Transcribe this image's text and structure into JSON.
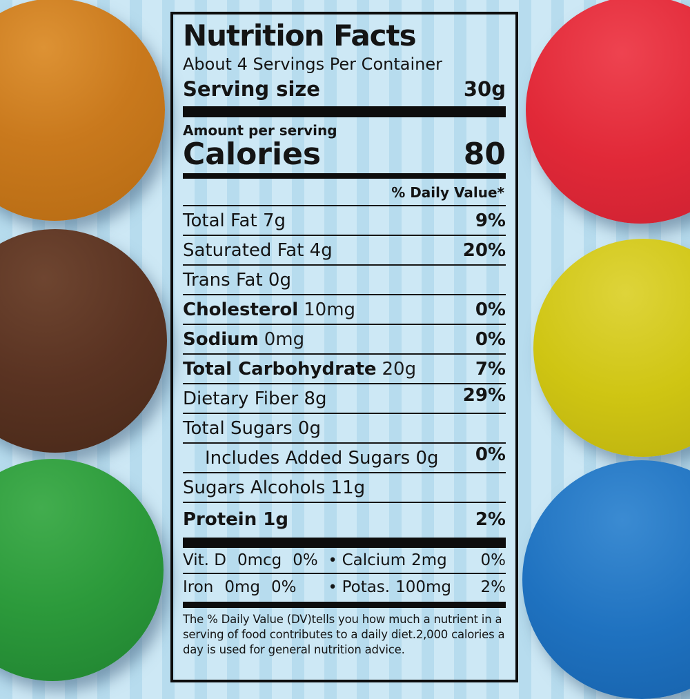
{
  "background": {
    "base": "#cde8f5",
    "stripe": "#b7dcee"
  },
  "candies": [
    {
      "name": "orange-candy",
      "color": "#c9791d"
    },
    {
      "name": "brown-candy",
      "color": "#5a3322"
    },
    {
      "name": "green-candy",
      "color": "#2c9a3b"
    },
    {
      "name": "red-candy",
      "color": "#e12938"
    },
    {
      "name": "yellow-candy",
      "color": "#cfc513"
    },
    {
      "name": "blue-candy",
      "color": "#1f72c0"
    }
  ],
  "label": {
    "title": "Nutrition Facts",
    "servings_per_container": "About 4 Servings Per Container",
    "serving_size_label": "Serving size",
    "serving_size_value": "30g",
    "amount_per_serving": "Amount per serving",
    "calories_label": "Calories",
    "calories_value": "80",
    "daily_value_header": "% Daily Value*",
    "rows": [
      {
        "name": "Total Fat 7g",
        "amount": "",
        "dv": "9%"
      },
      {
        "name": "Saturated Fat 4g",
        "amount": "",
        "dv": "20%"
      },
      {
        "name": "Trans Fat 0g",
        "amount": "",
        "dv": ""
      },
      {
        "name": "Cholesterol",
        "amount": "10mg",
        "dv": "0%"
      },
      {
        "name": "Sodium",
        "amount": "0mg",
        "dv": "0%"
      },
      {
        "name": "Total Carbohydrate",
        "amount": "20g",
        "dv": "7%"
      },
      {
        "name": "Dietary Fiber 8g",
        "amount": "",
        "dv": "29%"
      },
      {
        "name": "Total Sugars 0g",
        "amount": "",
        "dv": ""
      },
      {
        "name": "Includes Added Sugars 0g",
        "amount": "",
        "dv": "0%"
      },
      {
        "name": "Sugars Alcohols 11g",
        "amount": "",
        "dv": ""
      },
      {
        "name": "Protein 1g",
        "amount": "",
        "dv": "2%"
      }
    ],
    "bullet": "•",
    "micronutrients": [
      {
        "name": "Vit. D",
        "amount": "0mcg",
        "dv": "0%"
      },
      {
        "name": "Calcium",
        "amount": "2mg",
        "dv": "0%"
      },
      {
        "name": "Iron",
        "amount": "0mg",
        "dv": "0%"
      },
      {
        "name": "Potas.",
        "amount": "100mg",
        "dv": "2%"
      }
    ],
    "footnote": "The % Daily Value (DV)tells you how much a nutrient in a serving of food contributes to a daily diet.2,000 calories a day is used for general nutrition advice."
  }
}
